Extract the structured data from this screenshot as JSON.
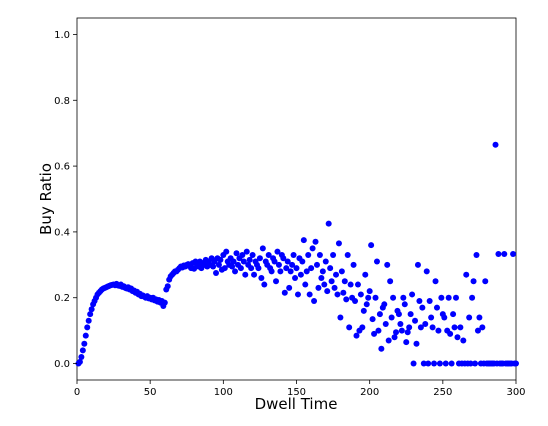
{
  "chart_data": {
    "type": "scatter",
    "title": "",
    "xlabel": "Dwell Time",
    "ylabel": "Buy Ratio",
    "xlim": [
      0,
      300
    ],
    "ylim": [
      -0.05,
      1.05
    ],
    "xticks": [
      0,
      50,
      100,
      150,
      200,
      250,
      300
    ],
    "xtick_labels": [
      "0",
      "50",
      "100",
      "150",
      "200",
      "250",
      "300"
    ],
    "yticks": [
      0.0,
      0.2,
      0.4,
      0.6,
      0.8,
      1.0
    ],
    "ytick_labels": [
      "0.0",
      "0.2",
      "0.4",
      "0.6",
      "0.8",
      "1.0"
    ],
    "grid": false,
    "legend": "none",
    "marker_color": "#0000ff",
    "series": [
      {
        "points": [
          [
            1,
            0.0
          ],
          [
            2,
            0.005
          ],
          [
            3,
            0.02
          ],
          [
            4,
            0.04
          ],
          [
            5,
            0.06
          ],
          [
            6,
            0.085
          ],
          [
            7,
            0.11
          ],
          [
            8,
            0.13
          ],
          [
            9,
            0.15
          ],
          [
            10,
            0.165
          ],
          [
            11,
            0.18
          ],
          [
            12,
            0.19
          ],
          [
            13,
            0.2
          ],
          [
            14,
            0.21
          ],
          [
            15,
            0.215
          ],
          [
            16,
            0.22
          ],
          [
            17,
            0.225
          ],
          [
            18,
            0.228
          ],
          [
            19,
            0.23
          ],
          [
            20,
            0.232
          ],
          [
            21,
            0.234
          ],
          [
            22,
            0.236
          ],
          [
            23,
            0.238
          ],
          [
            24,
            0.239
          ],
          [
            25,
            0.24
          ],
          [
            26,
            0.238
          ],
          [
            27,
            0.242
          ],
          [
            28,
            0.237
          ],
          [
            29,
            0.236
          ],
          [
            30,
            0.24
          ],
          [
            31,
            0.233
          ],
          [
            32,
            0.235
          ],
          [
            33,
            0.23
          ],
          [
            34,
            0.228
          ],
          [
            35,
            0.232
          ],
          [
            36,
            0.225
          ],
          [
            37,
            0.228
          ],
          [
            38,
            0.22
          ],
          [
            39,
            0.222
          ],
          [
            40,
            0.215
          ],
          [
            41,
            0.218
          ],
          [
            42,
            0.21
          ],
          [
            43,
            0.212
          ],
          [
            44,
            0.205
          ],
          [
            45,
            0.207
          ],
          [
            46,
            0.203
          ],
          [
            47,
            0.2
          ],
          [
            48,
            0.205
          ],
          [
            49,
            0.198
          ],
          [
            50,
            0.2
          ],
          [
            51,
            0.195
          ],
          [
            52,
            0.2
          ],
          [
            53,
            0.192
          ],
          [
            54,
            0.195
          ],
          [
            55,
            0.188
          ],
          [
            56,
            0.193
          ],
          [
            57,
            0.185
          ],
          [
            58,
            0.19
          ],
          [
            59,
            0.175
          ],
          [
            60,
            0.185
          ],
          [
            61,
            0.225
          ],
          [
            62,
            0.235
          ],
          [
            63,
            0.255
          ],
          [
            64,
            0.265
          ],
          [
            65,
            0.27
          ],
          [
            66,
            0.275
          ],
          [
            67,
            0.28
          ],
          [
            68,
            0.28
          ],
          [
            69,
            0.285
          ],
          [
            70,
            0.29
          ],
          [
            71,
            0.295
          ],
          [
            72,
            0.292
          ],
          [
            73,
            0.298
          ],
          [
            74,
            0.295
          ],
          [
            75,
            0.3
          ],
          [
            76,
            0.302
          ],
          [
            77,
            0.296
          ],
          [
            78,
            0.29
          ],
          [
            79,
            0.305
          ],
          [
            80,
            0.288
          ],
          [
            81,
            0.31
          ],
          [
            82,
            0.3
          ],
          [
            83,
            0.295
          ],
          [
            84,
            0.31
          ],
          [
            85,
            0.29
          ],
          [
            86,
            0.305
          ],
          [
            87,
            0.3
          ],
          [
            88,
            0.315
          ],
          [
            89,
            0.295
          ],
          [
            90,
            0.31
          ],
          [
            91,
            0.3
          ],
          [
            92,
            0.32
          ],
          [
            93,
            0.295
          ],
          [
            94,
            0.31
          ],
          [
            95,
            0.275
          ],
          [
            96,
            0.32
          ],
          [
            97,
            0.3
          ],
          [
            98,
            0.315
          ],
          [
            99,
            0.285
          ],
          [
            100,
            0.33
          ],
          [
            101,
            0.29
          ],
          [
            102,
            0.34
          ],
          [
            103,
            0.31
          ],
          [
            104,
            0.3
          ],
          [
            105,
            0.32
          ],
          [
            106,
            0.295
          ],
          [
            107,
            0.31
          ],
          [
            108,
            0.28
          ],
          [
            109,
            0.335
          ],
          [
            110,
            0.3
          ],
          [
            111,
            0.32
          ],
          [
            112,
            0.29
          ],
          [
            113,
            0.33
          ],
          [
            114,
            0.31
          ],
          [
            115,
            0.27
          ],
          [
            116,
            0.34
          ],
          [
            117,
            0.3
          ],
          [
            118,
            0.315
          ],
          [
            119,
            0.29
          ],
          [
            120,
            0.33
          ],
          [
            121,
            0.27
          ],
          [
            122,
            0.31
          ],
          [
            123,
            0.3
          ],
          [
            124,
            0.29
          ],
          [
            125,
            0.32
          ],
          [
            126,
            0.26
          ],
          [
            127,
            0.35
          ],
          [
            128,
            0.24
          ],
          [
            129,
            0.31
          ],
          [
            130,
            0.3
          ],
          [
            131,
            0.33
          ],
          [
            132,
            0.29
          ],
          [
            133,
            0.28
          ],
          [
            134,
            0.32
          ],
          [
            135,
            0.31
          ],
          [
            136,
            0.25
          ],
          [
            137,
            0.34
          ],
          [
            138,
            0.3
          ],
          [
            139,
            0.28
          ],
          [
            140,
            0.33
          ],
          [
            141,
            0.32
          ],
          [
            142,
            0.215
          ],
          [
            143,
            0.29
          ],
          [
            144,
            0.31
          ],
          [
            145,
            0.23
          ],
          [
            146,
            0.28
          ],
          [
            147,
            0.3
          ],
          [
            148,
            0.33
          ],
          [
            149,
            0.26
          ],
          [
            150,
            0.29
          ],
          [
            151,
            0.21
          ],
          [
            152,
            0.32
          ],
          [
            153,
            0.27
          ],
          [
            154,
            0.31
          ],
          [
            155,
            0.375
          ],
          [
            156,
            0.24
          ],
          [
            157,
            0.28
          ],
          [
            158,
            0.33
          ],
          [
            159,
            0.21
          ],
          [
            160,
            0.29
          ],
          [
            161,
            0.35
          ],
          [
            162,
            0.19
          ],
          [
            163,
            0.37
          ],
          [
            164,
            0.3
          ],
          [
            165,
            0.23
          ],
          [
            166,
            0.33
          ],
          [
            167,
            0.26
          ],
          [
            168,
            0.28
          ],
          [
            169,
            0.24
          ],
          [
            170,
            0.31
          ],
          [
            171,
            0.22
          ],
          [
            172,
            0.425
          ],
          [
            173,
            0.29
          ],
          [
            174,
            0.25
          ],
          [
            175,
            0.33
          ],
          [
            176,
            0.23
          ],
          [
            177,
            0.27
          ],
          [
            178,
            0.21
          ],
          [
            179,
            0.365
          ],
          [
            180,
            0.14
          ],
          [
            181,
            0.28
          ],
          [
            182,
            0.215
          ],
          [
            183,
            0.25
          ],
          [
            184,
            0.195
          ],
          [
            185,
            0.33
          ],
          [
            186,
            0.11
          ],
          [
            187,
            0.24
          ],
          [
            188,
            0.2
          ],
          [
            189,
            0.3
          ],
          [
            190,
            0.19
          ],
          [
            191,
            0.085
          ],
          [
            192,
            0.24
          ],
          [
            193,
            0.1
          ],
          [
            194,
            0.21
          ],
          [
            195,
            0.11
          ],
          [
            196,
            0.16
          ],
          [
            197,
            0.27
          ],
          [
            198,
            0.18
          ],
          [
            199,
            0.2
          ],
          [
            200,
            0.22
          ],
          [
            201,
            0.36
          ],
          [
            202,
            0.135
          ],
          [
            203,
            0.09
          ],
          [
            204,
            0.2
          ],
          [
            205,
            0.31
          ],
          [
            206,
            0.1
          ],
          [
            207,
            0.15
          ],
          [
            208,
            0.045
          ],
          [
            209,
            0.17
          ],
          [
            210,
            0.18
          ],
          [
            211,
            0.12
          ],
          [
            212,
            0.3
          ],
          [
            213,
            0.07
          ],
          [
            214,
            0.25
          ],
          [
            215,
            0.14
          ],
          [
            216,
            0.2
          ],
          [
            217,
            0.08
          ],
          [
            218,
            0.095
          ],
          [
            219,
            0.16
          ],
          [
            220,
            0.15
          ],
          [
            221,
            0.12
          ],
          [
            222,
            0.1
          ],
          [
            223,
            0.2
          ],
          [
            224,
            0.18
          ],
          [
            225,
            0.065
          ],
          [
            226,
            0.095
          ],
          [
            227,
            0.11
          ],
          [
            228,
            0.15
          ],
          [
            229,
            0.21
          ],
          [
            230,
            0.0
          ],
          [
            231,
            0.13
          ],
          [
            232,
            0.06
          ],
          [
            233,
            0.3
          ],
          [
            234,
            0.19
          ],
          [
            235,
            0.11
          ],
          [
            236,
            0.17
          ],
          [
            237,
            0.0
          ],
          [
            238,
            0.12
          ],
          [
            239,
            0.28
          ],
          [
            240,
            0.0
          ],
          [
            241,
            0.19
          ],
          [
            242,
            0.14
          ],
          [
            243,
            0.11
          ],
          [
            244,
            0.0
          ],
          [
            245,
            0.25
          ],
          [
            246,
            0.17
          ],
          [
            247,
            0.1
          ],
          [
            248,
            0.0
          ],
          [
            249,
            0.2
          ],
          [
            250,
            0.15
          ],
          [
            251,
            0.14
          ],
          [
            252,
            0.0
          ],
          [
            253,
            0.1
          ],
          [
            254,
            0.2
          ],
          [
            255,
            0.09
          ],
          [
            256,
            0.0
          ],
          [
            257,
            0.15
          ],
          [
            258,
            0.11
          ],
          [
            259,
            0.2
          ],
          [
            260,
            0.08
          ],
          [
            261,
            0.0
          ],
          [
            262,
            0.11
          ],
          [
            263,
            0.0
          ],
          [
            264,
            0.07
          ],
          [
            265,
            0.0
          ],
          [
            266,
            0.27
          ],
          [
            267,
            0.0
          ],
          [
            268,
            0.14
          ],
          [
            269,
            0.0
          ],
          [
            270,
            0.2
          ],
          [
            271,
            0.25
          ],
          [
            272,
            0.0
          ],
          [
            273,
            0.33
          ],
          [
            274,
            0.1
          ],
          [
            275,
            0.14
          ],
          [
            276,
            0.0
          ],
          [
            277,
            0.11
          ],
          [
            278,
            0.0
          ],
          [
            279,
            0.25
          ],
          [
            280,
            0.0
          ],
          [
            281,
            0.0
          ],
          [
            282,
            0.0
          ],
          [
            283,
            0.0
          ],
          [
            284,
            0.0
          ],
          [
            285,
            0.0
          ],
          [
            286,
            0.665
          ],
          [
            287,
            0.0
          ],
          [
            288,
            0.333
          ],
          [
            289,
            0.0
          ],
          [
            290,
            0.0
          ],
          [
            291,
            0.0
          ],
          [
            292,
            0.333
          ],
          [
            293,
            0.0
          ],
          [
            294,
            0.0
          ],
          [
            295,
            0.0
          ],
          [
            296,
            0.0
          ],
          [
            297,
            0.0
          ],
          [
            298,
            0.333
          ],
          [
            299,
            0.0
          ],
          [
            300,
            0.0
          ]
        ]
      }
    ]
  }
}
